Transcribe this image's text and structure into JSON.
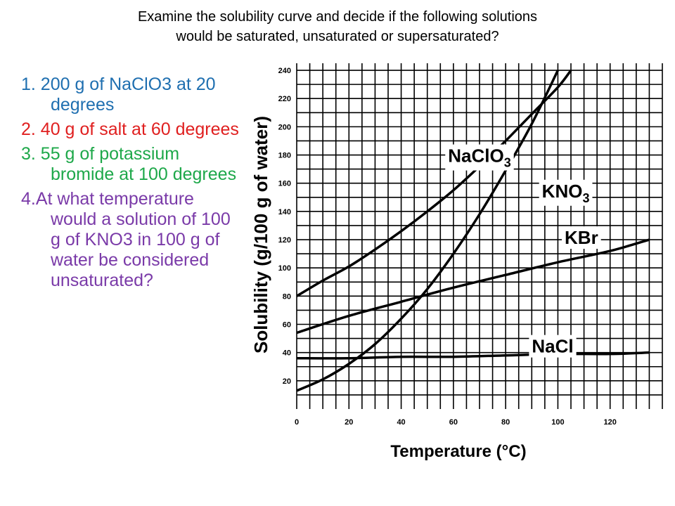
{
  "header": {
    "line1": "Examine the solubility curve and decide if the following solutions",
    "line2": "would be saturated, unsaturated or supersaturated?"
  },
  "questions": [
    {
      "text": "1. 200 g of NaClO3 at 20 degrees",
      "color": "#1f6fb0"
    },
    {
      "text": "2. 40 g of salt at 60 degrees",
      "color": "#e02020"
    },
    {
      "text": "3. 55 g of potassium bromide at 100 degrees",
      "color": "#1ea84a"
    },
    {
      "text": "4.At what temperature would a solution of 100 g of KNO3 in 100 g of water be considered unsaturated?",
      "color": "#7a3aa8"
    }
  ],
  "chart_data": {
    "type": "line",
    "xlabel": "Temperature (°C)",
    "ylabel": "Solubility (g/100 g of water)",
    "xlim": [
      0,
      140
    ],
    "ylim": [
      0,
      245
    ],
    "xticks": [
      0,
      20,
      40,
      60,
      80,
      100,
      120
    ],
    "yticks": [
      20,
      40,
      60,
      80,
      100,
      120,
      140,
      160,
      180,
      200,
      220,
      240
    ],
    "grid": true,
    "line_color": "#000000",
    "series": [
      {
        "name": "NaClO3",
        "label_at": "upper-middle",
        "points": [
          [
            0,
            80
          ],
          [
            10,
            91
          ],
          [
            20,
            101
          ],
          [
            30,
            113
          ],
          [
            40,
            126
          ],
          [
            50,
            140
          ],
          [
            60,
            155
          ],
          [
            70,
            172
          ],
          [
            80,
            190
          ],
          [
            90,
            209
          ],
          [
            100,
            228
          ],
          [
            105,
            240
          ]
        ]
      },
      {
        "name": "KNO3",
        "label_at": "right-middle",
        "points": [
          [
            0,
            13
          ],
          [
            10,
            21
          ],
          [
            20,
            32
          ],
          [
            30,
            46
          ],
          [
            40,
            64
          ],
          [
            50,
            85
          ],
          [
            60,
            110
          ],
          [
            70,
            138
          ],
          [
            80,
            169
          ],
          [
            90,
            202
          ],
          [
            100,
            240
          ]
        ]
      },
      {
        "name": "KBr",
        "label_at": "right",
        "points": [
          [
            0,
            54
          ],
          [
            20,
            66
          ],
          [
            40,
            76
          ],
          [
            60,
            86
          ],
          [
            80,
            95
          ],
          [
            100,
            104
          ],
          [
            120,
            112
          ],
          [
            135,
            120
          ]
        ]
      },
      {
        "name": "NaCl",
        "label_at": "lower-right",
        "points": [
          [
            0,
            36
          ],
          [
            20,
            36
          ],
          [
            40,
            37
          ],
          [
            60,
            37
          ],
          [
            80,
            38
          ],
          [
            100,
            39
          ],
          [
            120,
            39
          ],
          [
            135,
            40
          ]
        ]
      }
    ]
  }
}
